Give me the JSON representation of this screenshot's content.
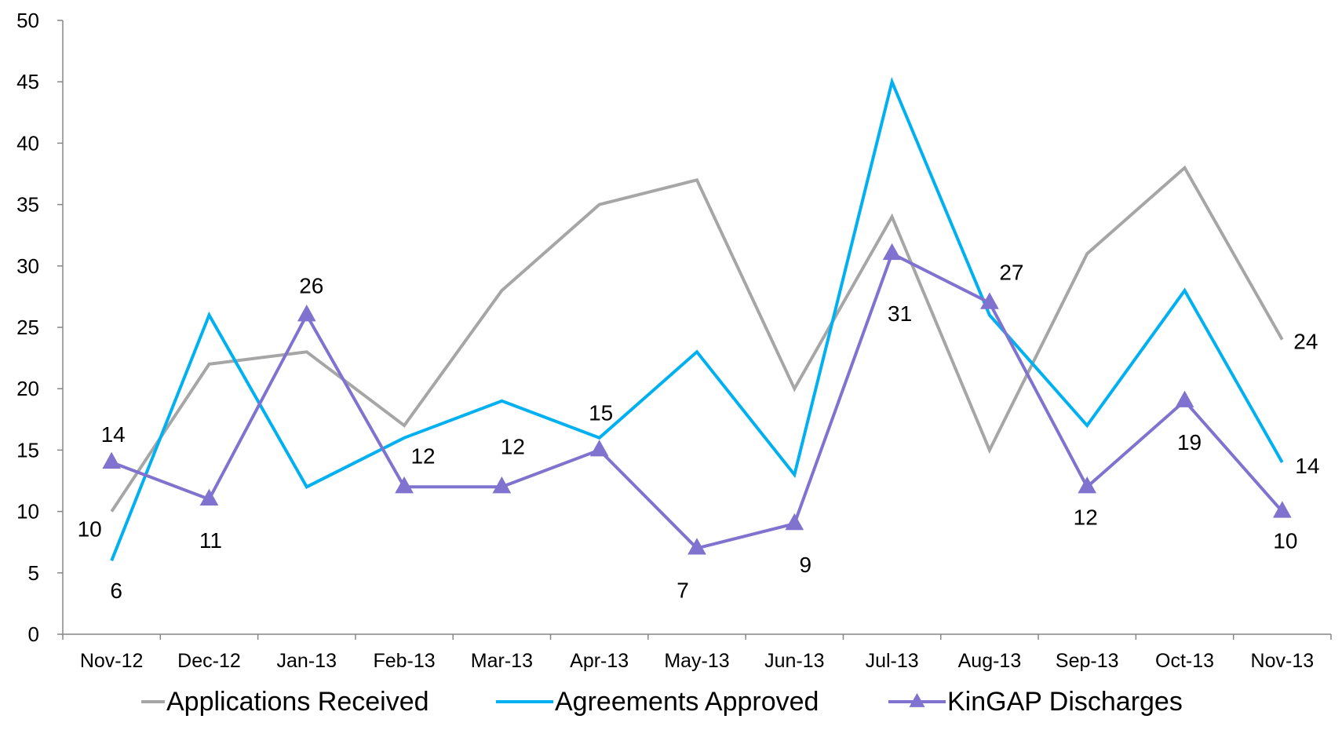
{
  "chart_data": {
    "type": "line",
    "title": "",
    "xlabel": "",
    "ylabel": "",
    "ylim": [
      0,
      50
    ],
    "yticks": [
      0,
      5,
      10,
      15,
      20,
      25,
      30,
      35,
      40,
      45,
      50
    ],
    "grid": false,
    "legend_position": "bottom",
    "categories": [
      "Nov-12",
      "Dec-12",
      "Jan-13",
      "Feb-13",
      "Mar-13",
      "Apr-13",
      "May-13",
      "Jun-13",
      "Jul-13",
      "Aug-13",
      "Sep-13",
      "Oct-13",
      "Nov-13"
    ],
    "series": [
      {
        "name": "Applications Received",
        "color": "#a6a6a6",
        "marker": "none",
        "values": [
          10,
          22,
          23,
          17,
          28,
          35,
          37,
          20,
          34,
          15,
          31,
          38,
          24
        ]
      },
      {
        "name": "Agreements Approved",
        "color": "#00b0f0",
        "marker": "none",
        "values": [
          6,
          26,
          12,
          16,
          19,
          16,
          23,
          13,
          45,
          26,
          17,
          28,
          14
        ]
      },
      {
        "name": "KinGAP Discharges",
        "color": "#7f73cf",
        "marker": "triangle",
        "values": [
          14,
          11,
          26,
          12,
          12,
          15,
          7,
          9,
          31,
          27,
          12,
          19,
          10
        ]
      }
    ],
    "data_labels": [
      {
        "text": "10",
        "series": 0,
        "index": 0
      },
      {
        "text": "24",
        "series": 0,
        "index": 12
      },
      {
        "text": "6",
        "series": 1,
        "index": 0
      },
      {
        "text": "14",
        "series": 1,
        "index": 12
      },
      {
        "text": "14",
        "series": 2,
        "index": 0
      },
      {
        "text": "11",
        "series": 2,
        "index": 1
      },
      {
        "text": "26",
        "series": 2,
        "index": 2
      },
      {
        "text": "12",
        "series": 2,
        "index": 3
      },
      {
        "text": "12",
        "series": 2,
        "index": 4
      },
      {
        "text": "15",
        "series": 2,
        "index": 5
      },
      {
        "text": "7",
        "series": 2,
        "index": 6
      },
      {
        "text": "9",
        "series": 2,
        "index": 7
      },
      {
        "text": "31",
        "series": 2,
        "index": 8
      },
      {
        "text": "27",
        "series": 2,
        "index": 9
      },
      {
        "text": "12",
        "series": 2,
        "index": 10
      },
      {
        "text": "19",
        "series": 2,
        "index": 11
      },
      {
        "text": "10",
        "series": 2,
        "index": 12
      }
    ]
  }
}
